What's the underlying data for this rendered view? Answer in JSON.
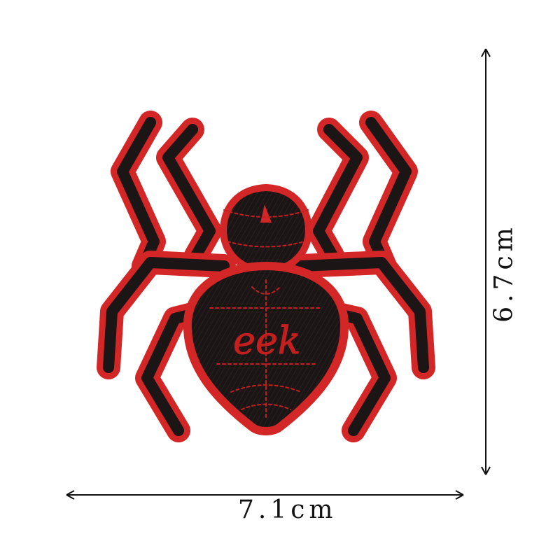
{
  "dimensions": {
    "width_label": "7.1cm",
    "height_label": "6.7cm"
  },
  "patch": {
    "text": "eek",
    "description_colors": {
      "border": "#d42a2a",
      "fill": "#1a1414",
      "stitch": "#c41f1f"
    }
  },
  "icons": [
    "spider-patch",
    "arrow-left-icon",
    "arrow-right-icon",
    "arrow-up-icon",
    "arrow-down-icon"
  ]
}
